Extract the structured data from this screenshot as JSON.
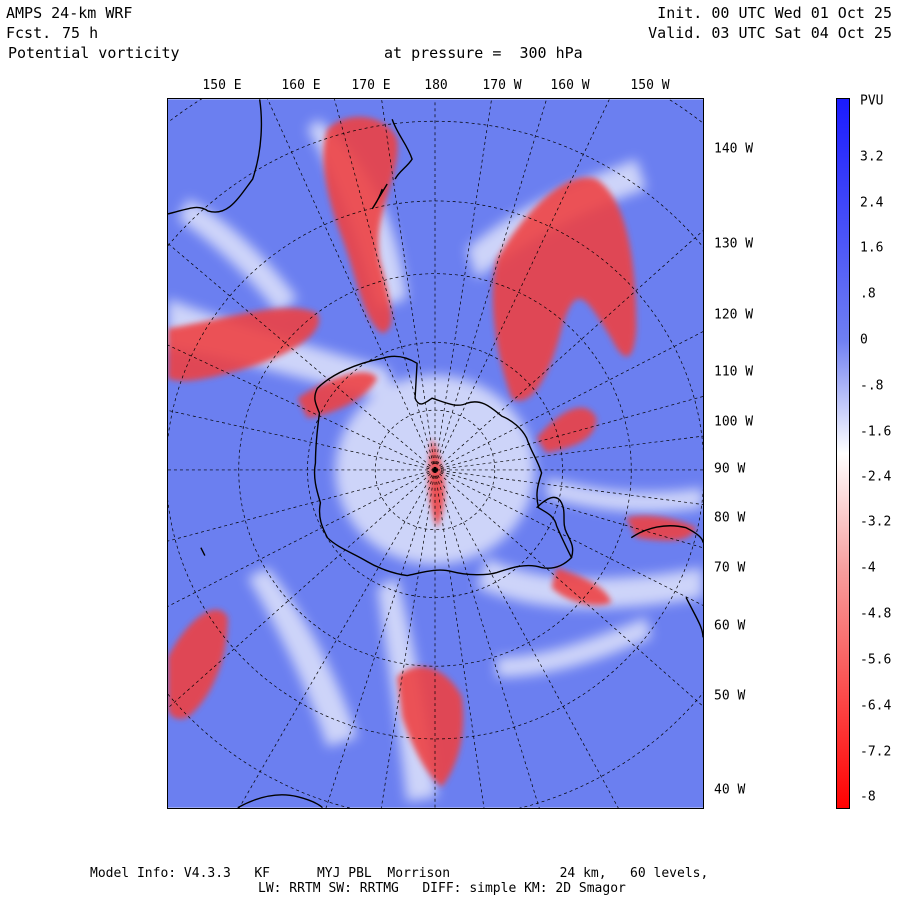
{
  "header": {
    "model": "AMPS 24-km WRF",
    "fcst_label": "Fcst.",
    "fcst_value": "75 h",
    "field": "Potential vorticity",
    "level": "at pressure =  300 hPa",
    "init": "Init. 00 UTC Wed 01 Oct 25",
    "valid": "Valid. 03 UTC Sat 04 Oct 25"
  },
  "longitude_labels": [
    "150 E",
    "160 E",
    "170 E",
    "180",
    "170 W",
    "160 W",
    "150 W"
  ],
  "latitude_labels": [
    "140 W",
    "130 W",
    "120 W",
    "110 W",
    "100 W",
    "90 W",
    "80 W",
    "70 W",
    "60 W",
    "50 W",
    "40 W"
  ],
  "colorbar": {
    "unit": "PVU",
    "tick_labels": [
      "3.2",
      "2.4",
      "1.6",
      ".8",
      "0",
      "-.8",
      "-1.6",
      "-2.4",
      "-3.2",
      "-4",
      "-4.8",
      "-5.6",
      "-6.4",
      "-7.2",
      "-8"
    ],
    "range": [
      -8,
      4
    ],
    "colors": {
      "max": "#1a1aff",
      "mid": "#ffffff",
      "min": "#ff0000"
    }
  },
  "map": {
    "projection": "south polar stereographic",
    "background_color": "#6b7ff0",
    "positive_color": "#f04040"
  },
  "footer": {
    "line1": "Model Info: V4.3.3   KF      MYJ PBL  Morrison              24 km,   60 levels,",
    "line2": "LW: RRTM SW: RRTMG   DIFF: simple KM: 2D Smagor"
  }
}
